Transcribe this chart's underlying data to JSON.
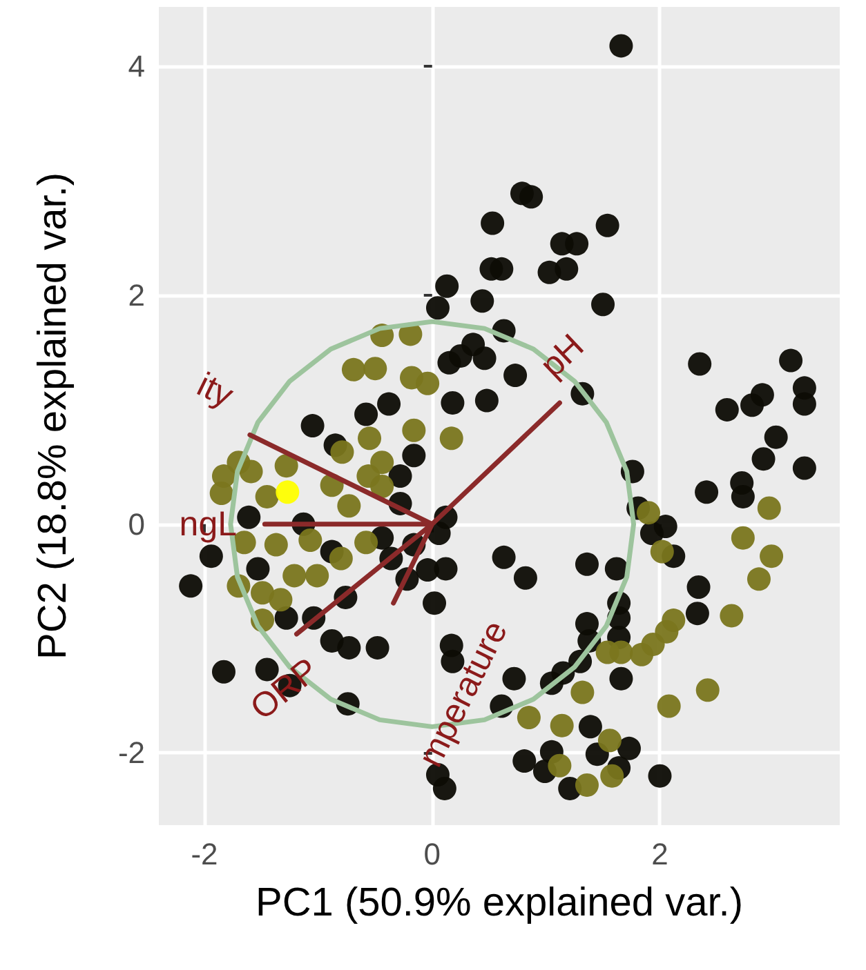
{
  "chart_data": {
    "type": "scatter",
    "xlabel": "PC1 (50.9% explained var.)",
    "ylabel": "PC2 (18.8% explained var.)",
    "xlim": [
      -2.4,
      3.58
    ],
    "ylim": [
      -2.63,
      4.52
    ],
    "xticks": [
      -2,
      0,
      2
    ],
    "yticks": [
      -2,
      0,
      2,
      4
    ],
    "grid": true,
    "marker": "circle",
    "series": [
      {
        "color": "#0d0c05",
        "x": [
          0.53,
          0.52,
          0.13,
          0.05,
          0.44,
          0.36,
          0.25,
          0.46,
          0.15,
          -0.38,
          0.18,
          0.48,
          1.66,
          0.79,
          0.87,
          1.54,
          1.14,
          1.27,
          0.61,
          1.03,
          1.18,
          1.5,
          0.63,
          0.73,
          2.35,
          3.15,
          2.9,
          3.27,
          2.59,
          2.81,
          3.27,
          1.32,
          1.76,
          1.81,
          2.05,
          1.93,
          2.12,
          0.63,
          0.82,
          1.36,
          1.62,
          2.41,
          2.72,
          2.73,
          2.91,
          3.02,
          3.27,
          2.34,
          2.33,
          1.64,
          1.64,
          1.36,
          1.38,
          1.64,
          1.3,
          1.66,
          1.15,
          1.05,
          0.72,
          0.61,
          1.39,
          0.81,
          1.05,
          0.99,
          1.21,
          1.45,
          1.73,
          1.64,
          2.0,
          -1.05,
          -0.85,
          -0.28,
          -1.61,
          -0.44,
          0.12,
          0.06,
          -1.94,
          -2.12,
          -1.53,
          -1.28,
          -1.04,
          -0.76,
          -0.22,
          -0.04,
          0.02,
          0.12,
          -0.88,
          -0.73,
          -0.48,
          0.17,
          0.18,
          -1.83,
          -1.45,
          -1.25,
          -0.74,
          0.05,
          0.11,
          -0.58,
          -0.16,
          -0.28,
          -1.13,
          -0.88,
          -0.16,
          -0.36
        ],
        "values": [
          2.63,
          2.23,
          2.08,
          1.89,
          1.95,
          1.57,
          1.47,
          1.45,
          1.41,
          1.05,
          1.06,
          1.08,
          4.18,
          2.89,
          2.86,
          2.61,
          2.45,
          2.45,
          2.23,
          2.2,
          2.23,
          1.92,
          1.69,
          1.3,
          1.4,
          1.43,
          1.13,
          1.19,
          1.0,
          1.04,
          1.05,
          1.14,
          0.46,
          0.14,
          -0.02,
          -0.08,
          -0.28,
          -0.29,
          -0.47,
          -0.35,
          -0.39,
          0.28,
          0.36,
          0.24,
          0.57,
          0.76,
          0.49,
          -0.55,
          -0.78,
          -0.69,
          -0.82,
          -0.87,
          -1.02,
          -0.99,
          -1.2,
          -1.35,
          -1.3,
          -1.39,
          -1.35,
          -1.59,
          -1.77,
          -2.07,
          -1.99,
          -2.16,
          -2.31,
          -2.01,
          -1.96,
          -2.13,
          -2.2,
          0.86,
          0.69,
          0.18,
          0.06,
          -0.12,
          0.06,
          -0.08,
          -0.28,
          -0.54,
          -0.39,
          -0.82,
          -0.82,
          -0.64,
          -0.48,
          -0.4,
          -0.69,
          -0.39,
          -1.02,
          -1.08,
          -1.08,
          -1.06,
          -1.2,
          -1.29,
          -1.27,
          -1.41,
          -1.57,
          -2.19,
          -2.31,
          0.96,
          0.6,
          0.42,
          0.0,
          -0.24,
          -0.18,
          -0.3
        ]
      },
      {
        "color": "#7a761e",
        "x": [
          -0.44,
          -0.19,
          -0.69,
          -0.5,
          -0.18,
          -0.04,
          1.9,
          2.02,
          2.96,
          2.73,
          2.98,
          2.87,
          2.63,
          1.54,
          1.66,
          1.84,
          1.94,
          2.06,
          2.12,
          0.85,
          1.32,
          1.14,
          2.08,
          2.42,
          1.12,
          1.36,
          1.56,
          1.58,
          -0.16,
          0.17,
          -0.55,
          -0.79,
          -0.44,
          -1.7,
          -1.83,
          -1.85,
          -1.59,
          -1.45,
          -1.28,
          -0.88,
          -0.73,
          -0.56,
          -0.44,
          -1.37,
          -1.65,
          -1.07,
          -0.8,
          -0.58,
          -1.7,
          -1.49,
          -1.33,
          -1.21,
          -1.01,
          -1.49
        ],
        "values": [
          1.65,
          1.66,
          1.35,
          1.36,
          1.28,
          1.23,
          0.1,
          -0.24,
          0.14,
          -0.12,
          -0.28,
          -0.48,
          -0.8,
          -1.12,
          -1.12,
          -1.14,
          -1.05,
          -0.94,
          -0.84,
          -1.69,
          -1.47,
          -1.76,
          -1.59,
          -1.45,
          -2.11,
          -2.28,
          -1.89,
          -2.2,
          0.82,
          0.75,
          0.75,
          0.63,
          0.54,
          0.54,
          0.42,
          0.27,
          0.46,
          0.24,
          0.51,
          0.34,
          0.16,
          0.42,
          0.33,
          -0.18,
          -0.16,
          -0.14,
          -0.3,
          -0.16,
          -0.54,
          -0.6,
          -0.66,
          -0.45,
          -0.45,
          -0.84
        ]
      },
      {
        "color": "#ffff00",
        "x": [
          -1.27
        ],
        "values": [
          0.28
        ]
      },
      {
        "type": "line",
        "color": "#9dc49d",
        "marker": "none",
        "x": [
          -1.77,
          -1.71,
          -1.53,
          -1.25,
          -0.89,
          -0.46,
          0,
          0.46,
          0.89,
          1.25,
          1.53,
          1.71,
          1.77,
          null,
          -1.77,
          -1.71,
          -1.53,
          -1.25,
          -0.89,
          -0.46,
          0,
          0.46,
          0.89,
          1.25,
          1.53,
          1.71,
          1.77
        ],
        "values": [
          0,
          0.46,
          0.89,
          1.25,
          1.53,
          1.71,
          1.77,
          1.71,
          1.53,
          1.25,
          0.89,
          0.46,
          0,
          null,
          0,
          -0.46,
          -0.89,
          -1.25,
          -1.53,
          -1.71,
          -1.77,
          -1.71,
          -1.53,
          -1.25,
          -0.89,
          -0.46,
          0
        ]
      },
      {
        "type": "line",
        "color": "#8b2a2a",
        "marker": "none",
        "x": [
          0,
          1.12,
          null,
          0,
          -1.6,
          null,
          0,
          -1.47,
          null,
          0,
          -1.19,
          null,
          0,
          -0.34
        ],
        "values": [
          0,
          1.06,
          null,
          0,
          0.78,
          null,
          0,
          0,
          null,
          0,
          -0.96,
          null,
          0,
          -0.69
        ]
      }
    ],
    "annotations": [
      "pH",
      "ity",
      "ngL",
      "ORP",
      "mperature"
    ]
  }
}
